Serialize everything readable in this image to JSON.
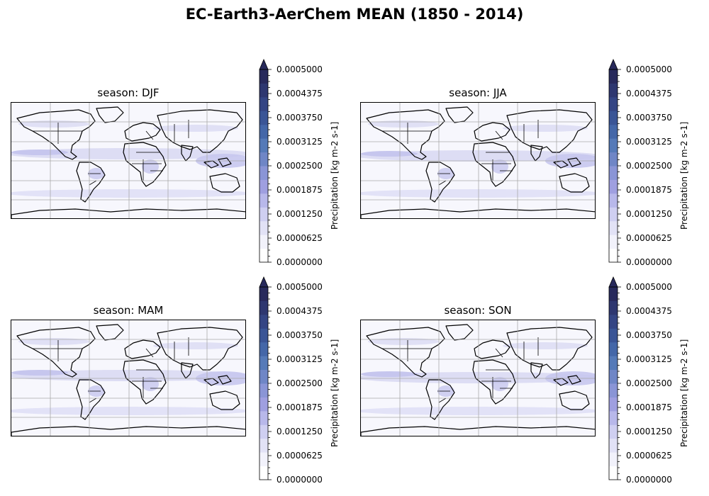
{
  "figure": {
    "title": "EC-Earth3-AerChem MEAN (1850 - 2014)"
  },
  "panels": [
    {
      "title": "season: DJF"
    },
    {
      "title": "season: JJA"
    },
    {
      "title": "season: MAM"
    },
    {
      "title": "season: SON"
    }
  ],
  "colorbar": {
    "label": "Precipitation [kg m-2 s-1]",
    "ticks": [
      "0.0000000",
      "0.0000625",
      "0.0001250",
      "0.0001875",
      "0.0002500",
      "0.0003125",
      "0.0003750",
      "0.0004375",
      "0.0005000"
    ],
    "range": [
      0.0,
      0.0005
    ],
    "extend": "max",
    "colors": [
      "#ffffff",
      "#f2f2fb",
      "#e2e2f6",
      "#cfcff1",
      "#b8b8ea",
      "#9f9fe0",
      "#8a95d6",
      "#6f86c6",
      "#557ab8",
      "#4467a8",
      "#3a5596",
      "#344584",
      "#2e3770",
      "#282a5c"
    ]
  },
  "map_style": {
    "ocean": "#f7f7fd",
    "band": "#d9d9f3",
    "band_strong": "#c6c6ee",
    "grid": "#a9a9a9",
    "coast": "#000000"
  }
}
